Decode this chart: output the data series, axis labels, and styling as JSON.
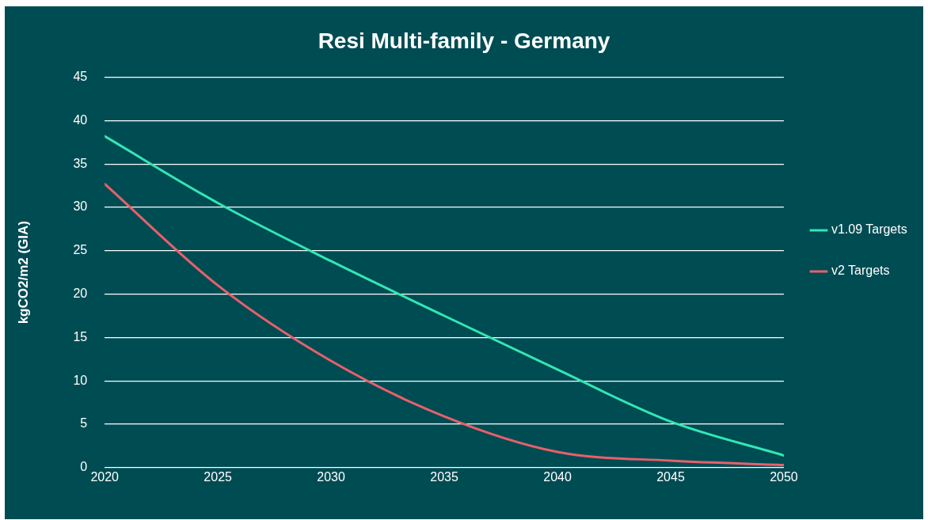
{
  "chart_data": {
    "type": "line",
    "title": "Resi Multi-family - Germany",
    "ylabel": "kgCO2/m2 (GIA)",
    "x": [
      2020,
      2025,
      2030,
      2035,
      2040,
      2045,
      2050
    ],
    "series": [
      {
        "name": "v1.09 Targets",
        "color": "#33e6b4",
        "values": [
          38.2,
          30.5,
          23.8,
          17.5,
          11.3,
          5.3,
          1.4
        ]
      },
      {
        "name": "v2 Targets",
        "color": "#e8606b",
        "values": [
          32.7,
          21,
          12.3,
          5.9,
          1.8,
          0.8,
          0.3
        ]
      }
    ],
    "xlim": [
      2020,
      2050
    ],
    "xticks": [
      2020,
      2025,
      2030,
      2035,
      2040,
      2045,
      2050
    ],
    "ylim": [
      0,
      45
    ],
    "yticks": [
      0,
      5,
      10,
      15,
      20,
      25,
      30,
      35,
      40,
      45
    ],
    "grid": "y",
    "legend": "right",
    "marker": "none",
    "line_style": "solid"
  }
}
